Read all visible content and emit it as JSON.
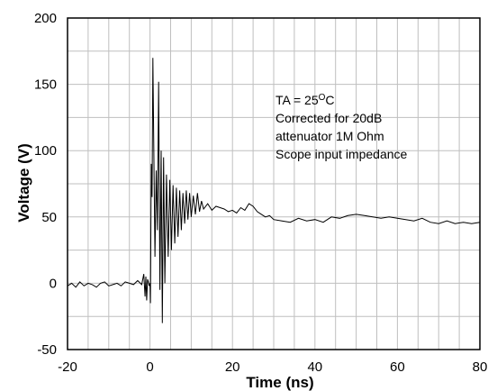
{
  "chart_data": {
    "type": "line",
    "xlabel": "Time  (ns)",
    "ylabel": "Voltage (V)",
    "xlim": [
      -20,
      80
    ],
    "ylim": [
      -50,
      200
    ],
    "x_ticks": [
      -20,
      0,
      20,
      40,
      60,
      80
    ],
    "x_tick_labels": [
      "-20",
      "0",
      "20",
      "40",
      "60",
      "80"
    ],
    "y_ticks": [
      -50,
      0,
      50,
      100,
      150,
      200
    ],
    "y_tick_labels": [
      "-50",
      "0",
      "50",
      "100",
      "150",
      "200"
    ],
    "grid": true,
    "grid_x_step": 5,
    "grid_y_step": 25,
    "line_color": "#000000",
    "annotation": {
      "line1_prefix": "TA = 25",
      "line1_sup": "O",
      "line1_suffix": "C",
      "line2": "Corrected for 20dB",
      "line3": "attenuator  1M Ohm",
      "line4": "Scope input impedance"
    },
    "series": [
      {
        "x": [
          -20,
          -19,
          -18,
          -17,
          -16,
          -15,
          -14,
          -13,
          -12,
          -11,
          -10,
          -9,
          -8,
          -7,
          -6,
          -5,
          -4,
          -3,
          -2,
          -1.5,
          -1.2,
          -1,
          -0.8,
          -0.6,
          -0.4,
          -0.2,
          0,
          0.1,
          0.3,
          0.5,
          0.7,
          0.9,
          1.2,
          1.5,
          1.8,
          2.1,
          2.4,
          2.7,
          3.0,
          3.3,
          3.6,
          4.0,
          4.4,
          4.8,
          5.2,
          5.6,
          6.0,
          6.4,
          6.8,
          7.2,
          7.6,
          8.0,
          8.4,
          8.8,
          9.2,
          9.6,
          10.0,
          10.5,
          11.0,
          11.5,
          12.0,
          12.5,
          13.0,
          14,
          15,
          16,
          17,
          18,
          19,
          20,
          21,
          22,
          23,
          24,
          25,
          26,
          27,
          28,
          29,
          30,
          32,
          34,
          36,
          38,
          40,
          42,
          44,
          46,
          48,
          50,
          52,
          54,
          56,
          58,
          60,
          62,
          64,
          66,
          68,
          70,
          72,
          74,
          76,
          78,
          80
        ],
        "y": [
          -2,
          0,
          -3,
          1,
          -2,
          0,
          -1,
          -3,
          0,
          1,
          -2,
          -1,
          0,
          -2,
          1,
          0,
          -1,
          2,
          -1,
          7,
          -10,
          5,
          -13,
          3,
          1,
          -2,
          0,
          -15,
          90,
          65,
          170,
          110,
          20,
          85,
          40,
          152,
          -5,
          100,
          -30,
          95,
          0,
          82,
          20,
          78,
          25,
          74,
          30,
          72,
          35,
          70,
          40,
          68,
          45,
          70,
          48,
          68,
          50,
          66,
          52,
          68,
          54,
          62,
          56,
          60,
          55,
          58,
          57,
          56,
          54,
          55,
          53,
          57,
          55,
          60,
          58,
          54,
          52,
          50,
          51,
          48,
          47,
          46,
          49,
          47,
          48,
          46,
          50,
          49,
          51,
          52,
          51,
          50,
          49,
          50,
          49,
          48,
          47,
          49,
          46,
          45,
          47,
          45,
          46,
          45,
          46
        ]
      }
    ]
  }
}
